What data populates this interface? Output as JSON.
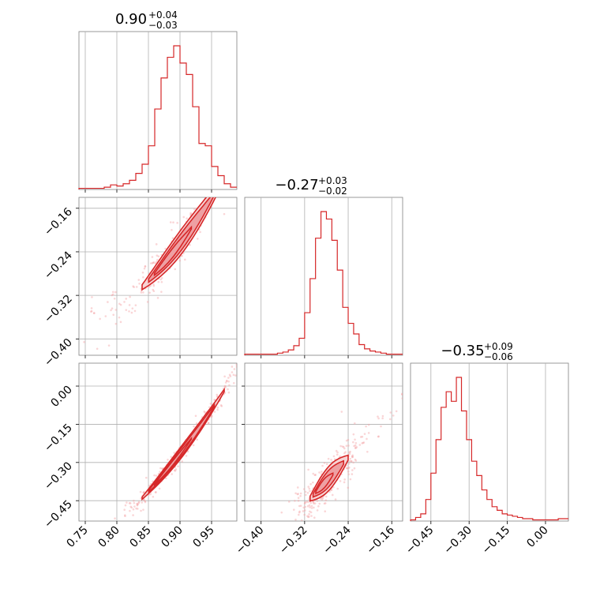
{
  "colors": {
    "accent": "#d62728",
    "frame": "#808080",
    "grid": "#b0b0b0"
  },
  "chart_data": {
    "type": "corner",
    "parameters": [
      {
        "median": 0.9,
        "plus": 0.04,
        "minus": 0.03,
        "title_main": "0.90",
        "title_plus": "+0.04",
        "title_minus": "−0.03",
        "range": [
          0.74,
          0.99
        ],
        "ticks": [
          0.75,
          0.8,
          0.85,
          0.9,
          0.95
        ],
        "tick_labels": [
          "0.75",
          "0.80",
          "0.85",
          "0.90",
          "0.95"
        ]
      },
      {
        "median": -0.27,
        "plus": 0.03,
        "minus": 0.02,
        "title_main": "−0.27",
        "title_plus": "+0.03",
        "title_minus": "−0.02",
        "range": [
          -0.43,
          -0.14
        ],
        "ticks": [
          -0.4,
          -0.32,
          -0.24,
          -0.16
        ],
        "tick_labels": [
          "−0.40",
          "−0.32",
          "−0.24",
          "−0.16"
        ]
      },
      {
        "median": -0.35,
        "plus": 0.09,
        "minus": 0.06,
        "title_main": "−0.35",
        "title_plus": "+0.09",
        "title_minus": "−0.06",
        "range": [
          -0.53,
          0.09
        ],
        "ticks": [
          -0.45,
          -0.3,
          -0.15,
          0.0
        ],
        "tick_labels": [
          "−0.45",
          "−0.30",
          "−0.15",
          "0.00"
        ]
      }
    ],
    "histograms": [
      {
        "param": 0,
        "edges": [
          0.74,
          0.75,
          0.76,
          0.77,
          0.78,
          0.79,
          0.8,
          0.81,
          0.82,
          0.83,
          0.84,
          0.85,
          0.86,
          0.87,
          0.88,
          0.89,
          0.9,
          0.91,
          0.92,
          0.93,
          0.94,
          0.95,
          0.96,
          0.97,
          0.98,
          0.99
        ],
        "counts": [
          1,
          1,
          1,
          1,
          2,
          4,
          3,
          5,
          8,
          14,
          22,
          38,
          70,
          97,
          115,
          125,
          110,
          100,
          72,
          40,
          38,
          20,
          12,
          5,
          2
        ]
      },
      {
        "param": 1,
        "edges": [
          -0.43,
          -0.42,
          -0.41,
          -0.4,
          -0.39,
          -0.38,
          -0.37,
          -0.36,
          -0.35,
          -0.34,
          -0.33,
          -0.32,
          -0.31,
          -0.3,
          -0.29,
          -0.28,
          -0.27,
          -0.26,
          -0.25,
          -0.24,
          -0.23,
          -0.22,
          -0.21,
          -0.2,
          -0.19,
          -0.18,
          -0.17,
          -0.16,
          -0.15,
          -0.14
        ],
        "counts": [
          1,
          1,
          1,
          1,
          1,
          1,
          2,
          3,
          5,
          9,
          16,
          40,
          72,
          110,
          135,
          128,
          108,
          80,
          45,
          30,
          20,
          10,
          6,
          4,
          3,
          2,
          1,
          1,
          1
        ]
      },
      {
        "param": 2,
        "edges": [
          -0.53,
          -0.51,
          -0.49,
          -0.47,
          -0.45,
          -0.43,
          -0.41,
          -0.39,
          -0.37,
          -0.35,
          -0.33,
          -0.31,
          -0.29,
          -0.27,
          -0.25,
          -0.23,
          -0.21,
          -0.19,
          -0.17,
          -0.15,
          -0.13,
          -0.11,
          -0.09,
          -0.07,
          -0.05,
          -0.03,
          -0.01,
          0.01,
          0.03,
          0.05,
          0.07,
          0.09
        ],
        "counts": [
          1,
          3,
          6,
          18,
          40,
          68,
          95,
          108,
          100,
          120,
          92,
          68,
          50,
          38,
          26,
          18,
          12,
          9,
          6,
          5,
          4,
          3,
          2,
          2,
          1,
          1,
          1,
          1,
          1,
          2,
          2
        ]
      }
    ],
    "pairs": [
      {
        "x_param": 0,
        "y_param": 1,
        "relation": "y = -0.305 + 1.16*(x - 0.84) + 3.0*(x - 0.84)^2",
        "x_range_core": [
          0.84,
          0.97
        ],
        "scatter_sigma": 0.012
      },
      {
        "x_param": 0,
        "y_param": 2,
        "relation": "y = -0.44 + 2.6*(x - 0.84) + 5.0*(x - 0.84)^2",
        "x_range_core": [
          0.84,
          0.97
        ],
        "scatter_sigma": 0.012
      },
      {
        "x_param": 1,
        "y_param": 2,
        "relation": "y = -0.35 + 2.3*(x + 0.27)",
        "x_range_core": [
          -0.31,
          -0.24
        ],
        "scatter_sigma": 0.025
      }
    ],
    "grid": true
  }
}
